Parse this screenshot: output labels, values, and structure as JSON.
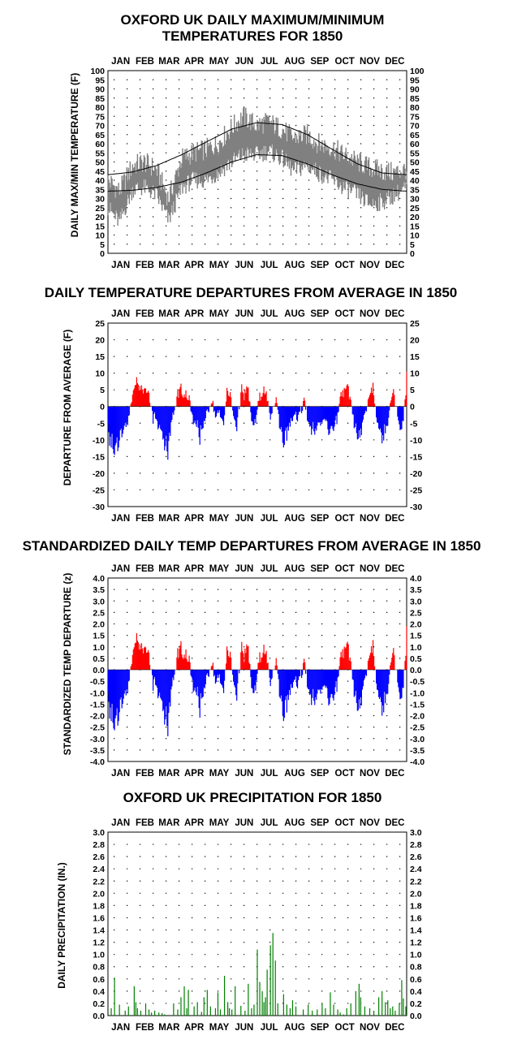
{
  "charts": [
    {
      "title_lines": [
        "OXFORD UK DAILY MAXIMUM/MINIMUM",
        "TEMPERATURES FOR 1850"
      ],
      "ylabel": "DAILY MAX/MIN TEMPERATURE  (F)",
      "yticks": [
        "0",
        "5",
        "10",
        "15",
        "20",
        "25",
        "30",
        "35",
        "40",
        "45",
        "50",
        "55",
        "60",
        "65",
        "70",
        "75",
        "80",
        "85",
        "90",
        "95",
        "100"
      ]
    },
    {
      "title_lines": [
        "DAILY TEMPERATURE DEPARTURES FROM AVERAGE IN 1850"
      ],
      "ylabel": "DEPARTURE FROM AVERAGE  (F)",
      "yticks": [
        "-30",
        "-25",
        "-20",
        "-15",
        "-10",
        "-5",
        "0",
        "5",
        "10",
        "15",
        "20",
        "25"
      ]
    },
    {
      "title_lines": [
        "STANDARDIZED DAILY TEMP DEPARTURES FROM AVERAGE IN 1850"
      ],
      "ylabel": "STANDARDIZED TEMP DEPARTURE  (z)",
      "yticks": [
        "-4.0",
        "-3.5",
        "-3.0",
        "-2.5",
        "-2.0",
        "-1.5",
        "-1.0",
        "-0.5",
        "0.0",
        "0.5",
        "1.0",
        "1.5",
        "2.0",
        "2.5",
        "3.0",
        "3.5",
        "4.0"
      ]
    },
    {
      "title_lines": [
        "OXFORD UK PRECIPITATION FOR 1850"
      ],
      "ylabel": "DAILY PRECIPITATION (IN.)",
      "yticks": [
        "0.0",
        "0.2",
        "0.4",
        "0.6",
        "0.8",
        "1.0",
        "1.2",
        "1.4",
        "1.6",
        "1.8",
        "2.0",
        "2.2",
        "2.4",
        "2.6",
        "2.8",
        "3.0"
      ]
    }
  ],
  "months": [
    "JAN",
    "FEB",
    "MAR",
    "APR",
    "MAY",
    "JUN",
    "JUL",
    "AUG",
    "SEP",
    "OCT",
    "NOV",
    "DEC"
  ],
  "colors": {
    "observed": "#808080",
    "normal": "#000000",
    "positive": "#ff0000",
    "negative": "#0000ff",
    "precip": "#008000"
  },
  "chart_data": [
    {
      "type": "line",
      "title": "OXFORD UK DAILY MAXIMUM/MINIMUM TEMPERATURES FOR 1850",
      "ylabel": "DAILY MAX/MIN TEMPERATURE  (F)",
      "ylim": [
        0,
        100
      ],
      "x_unit": "day of year 1850",
      "xlim": [
        1,
        365
      ],
      "series": [
        {
          "name_hidden": true,
          "role": "normal_max",
          "x": [
            1,
            31,
            60,
            91,
            121,
            152,
            182,
            213,
            244,
            274,
            305,
            335,
            365
          ],
          "values": [
            43,
            44.5,
            48,
            54,
            61,
            68,
            71.5,
            70.5,
            65,
            57,
            49,
            44,
            43
          ]
        },
        {
          "name_hidden": true,
          "role": "normal_min",
          "x": [
            1,
            31,
            60,
            91,
            121,
            152,
            182,
            213,
            244,
            274,
            305,
            335,
            365
          ],
          "values": [
            34,
            34.5,
            36,
            39,
            44,
            50,
            54,
            53.5,
            49,
            43,
            38,
            35,
            34
          ]
        },
        {
          "name_hidden": true,
          "role": "observed_max",
          "x": [
            1,
            15,
            31,
            45,
            60,
            75,
            91,
            105,
            121,
            135,
            152,
            166,
            182,
            196,
            213,
            227,
            244,
            258,
            274,
            288,
            305,
            320,
            335,
            350,
            365
          ],
          "values": [
            40,
            34,
            48,
            50,
            46,
            30,
            52,
            55,
            57,
            60,
            69,
            75,
            70,
            72,
            68,
            63,
            65,
            60,
            58,
            54,
            50,
            47,
            45,
            44,
            46
          ]
        },
        {
          "name_hidden": true,
          "role": "observed_min",
          "x": [
            1,
            15,
            31,
            45,
            60,
            75,
            91,
            105,
            121,
            135,
            152,
            166,
            182,
            196,
            213,
            227,
            244,
            258,
            274,
            288,
            305,
            320,
            335,
            350,
            365
          ],
          "values": [
            25,
            17,
            35,
            36,
            32,
            18,
            36,
            40,
            40,
            44,
            50,
            54,
            54,
            56,
            52,
            45,
            48,
            44,
            40,
            36,
            32,
            27,
            28,
            32,
            36
          ]
        }
      ]
    },
    {
      "type": "bar",
      "title": "DAILY TEMPERATURE DEPARTURES FROM AVERAGE IN 1850",
      "ylabel": "DEPARTURE FROM AVERAGE  (F)",
      "ylim": [
        -30,
        25
      ],
      "x_unit": "day of year 1850",
      "daily_series_day_range": [
        1,
        365
      ],
      "anchors_x": [
        1,
        10,
        15,
        25,
        33,
        38,
        43,
        50,
        56,
        62,
        67,
        70,
        74,
        76,
        80,
        88,
        93,
        97,
        101,
        104,
        108,
        114,
        118,
        122,
        127,
        133,
        137,
        142,
        146,
        150,
        154,
        158,
        163,
        167,
        172,
        176,
        181,
        186,
        190,
        194,
        198,
        202,
        206,
        210,
        215,
        219,
        223,
        227,
        231,
        236,
        241,
        244,
        250,
        256,
        260,
        265,
        270,
        275,
        280,
        285,
        290,
        295,
        300,
        305,
        310,
        315,
        320,
        324,
        329,
        333,
        337,
        342,
        346,
        350,
        354,
        357,
        361,
        365
      ],
      "anchors_values": [
        -10,
        -16,
        -12,
        -6,
        8,
        9,
        6,
        8,
        -4,
        -6,
        -10,
        -14,
        -18,
        -12,
        -3,
        7,
        5,
        4,
        2,
        -5,
        -8,
        -12,
        -6,
        -3,
        3,
        -4,
        -3,
        -6,
        5,
        4,
        -4,
        -8,
        6,
        4,
        8,
        -7,
        -5,
        4,
        6,
        5,
        -4,
        -2,
        3,
        -6,
        -13,
        -9,
        -6,
        -3,
        -5,
        -2,
        3,
        -4,
        -9,
        -8,
        -6,
        -3,
        -10,
        -8,
        -5,
        5,
        8,
        6,
        -4,
        -12,
        -8,
        -3,
        5,
        7,
        -6,
        -10,
        -12,
        -5,
        3,
        5,
        -3,
        -8,
        -5,
        12
      ]
    },
    {
      "type": "bar",
      "title": "STANDARDIZED DAILY TEMP DEPARTURES FROM AVERAGE IN 1850",
      "ylabel": "STANDARDIZED TEMP DEPARTURE  (z)",
      "ylim": [
        -4,
        4
      ],
      "x_unit": "day of year 1850",
      "derived_from": "departures / 5.5"
    },
    {
      "type": "bar",
      "title": "OXFORD UK PRECIPITATION FOR 1850",
      "ylabel": "DAILY PRECIPITATION (IN.)",
      "ylim": [
        0,
        3.0
      ],
      "x_unit": "day of year 1850",
      "x": [
        5,
        9,
        15,
        22,
        26,
        33,
        35,
        37,
        41,
        47,
        51,
        54,
        58,
        63,
        67,
        70,
        81,
        86,
        90,
        94,
        97,
        99,
        106,
        110,
        115,
        118,
        122,
        126,
        132,
        135,
        138,
        143,
        147,
        149,
        152,
        156,
        163,
        168,
        172,
        176,
        179,
        183,
        186,
        189,
        191,
        193,
        195,
        199,
        202,
        205,
        208,
        215,
        219,
        223,
        226,
        230,
        239,
        245,
        250,
        256,
        262,
        266,
        272,
        276,
        281,
        284,
        288,
        292,
        297,
        303,
        307,
        309,
        314,
        320,
        325,
        331,
        335,
        339,
        342,
        345,
        348,
        351,
        356,
        359,
        361,
        364
      ],
      "values": [
        0.12,
        0.62,
        0.18,
        0.08,
        0.15,
        0.48,
        0.22,
        0.12,
        0.08,
        0.2,
        0.1,
        0.05,
        0.08,
        0.05,
        0.04,
        0.02,
        0.2,
        0.1,
        0.3,
        0.48,
        0.12,
        0.42,
        0.15,
        0.22,
        0.06,
        0.3,
        0.42,
        0.15,
        0.12,
        0.38,
        0.1,
        0.65,
        0.22,
        0.12,
        0.1,
        0.48,
        0.16,
        0.08,
        0.52,
        0.12,
        0.18,
        1.08,
        0.55,
        0.4,
        0.22,
        0.3,
        0.75,
        1.15,
        1.35,
        0.9,
        0.2,
        0.35,
        0.18,
        0.12,
        0.25,
        0.15,
        0.1,
        0.18,
        0.08,
        0.1,
        0.2,
        0.12,
        0.38,
        0.18,
        0.1,
        0.05,
        0.02,
        0.12,
        0.2,
        0.4,
        0.52,
        0.3,
        0.15,
        0.12,
        0.08,
        0.3,
        0.4,
        0.22,
        0.25,
        0.12,
        0.15,
        0.08,
        0.2,
        0.58,
        0.28,
        0.15
      ]
    }
  ]
}
